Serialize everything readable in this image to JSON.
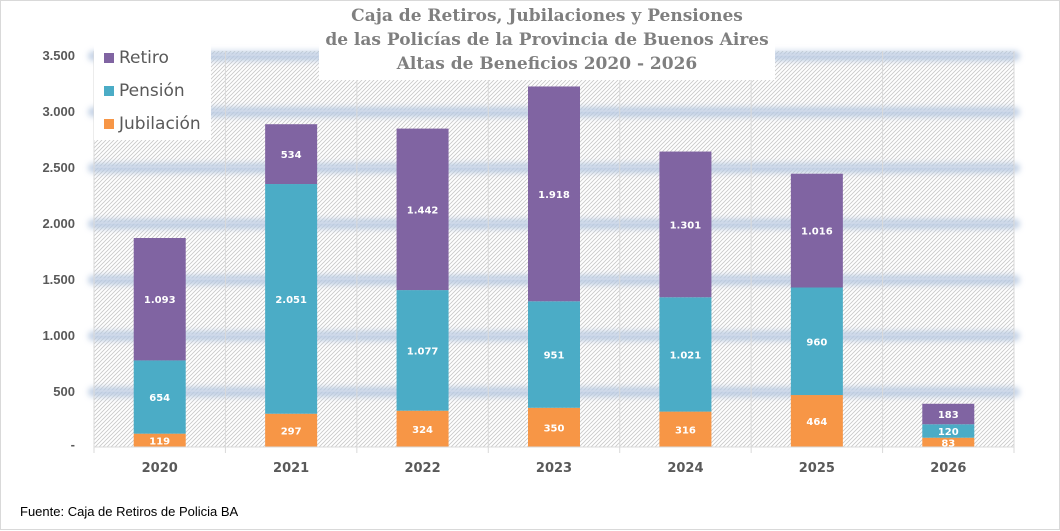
{
  "chart_data": {
    "type": "bar",
    "stacked": true,
    "title_lines": [
      "Caja de Retiros, Jubilaciones y Pensiones",
      "de las Policías de la Provincia de Buenos Aires",
      "Altas de Beneficios 2020  - 2026"
    ],
    "xlabel": "",
    "ylabel": "",
    "categories": [
      "2020",
      "2021",
      "2022",
      "2023",
      "2024",
      "2025",
      "2026"
    ],
    "series": [
      {
        "name": "Jubilación",
        "color": "#f79646",
        "values": [
          119,
          297,
          324,
          350,
          316,
          464,
          83
        ],
        "labels": [
          "119",
          "297",
          "324",
          "350",
          "316",
          "464",
          "83"
        ]
      },
      {
        "name": "Pensión",
        "color": "#4bacc6",
        "values": [
          654,
          2051,
          1077,
          951,
          1021,
          960,
          120
        ],
        "labels": [
          "654",
          "2.051",
          "1.077",
          "951",
          "1.021",
          "960",
          "120"
        ]
      },
      {
        "name": "Retiro",
        "color": "#8064a2",
        "values": [
          1093,
          534,
          1442,
          1918,
          1301,
          1016,
          183
        ],
        "labels": [
          "1.093",
          "534",
          "1.442",
          "1.918",
          "1.301",
          "1.016",
          "183"
        ]
      }
    ],
    "ylim": [
      0,
      3500
    ],
    "yticks": [
      0,
      500,
      1000,
      1500,
      2000,
      2500,
      3000,
      3500
    ],
    "ytick_labels": [
      "-",
      "500",
      "1.000",
      "1.500",
      "2.000",
      "2.500",
      "3.000",
      "3.500"
    ],
    "grid": true,
    "legend": {
      "placement": "top-left",
      "entries": [
        {
          "name": "Retiro",
          "color": "#8064a2"
        },
        {
          "name": "Pensión",
          "color": "#4bacc6"
        },
        {
          "name": "Jubilación",
          "color": "#f79646"
        }
      ]
    },
    "source": "Fuente: Caja de Retiros de Policia BA"
  }
}
